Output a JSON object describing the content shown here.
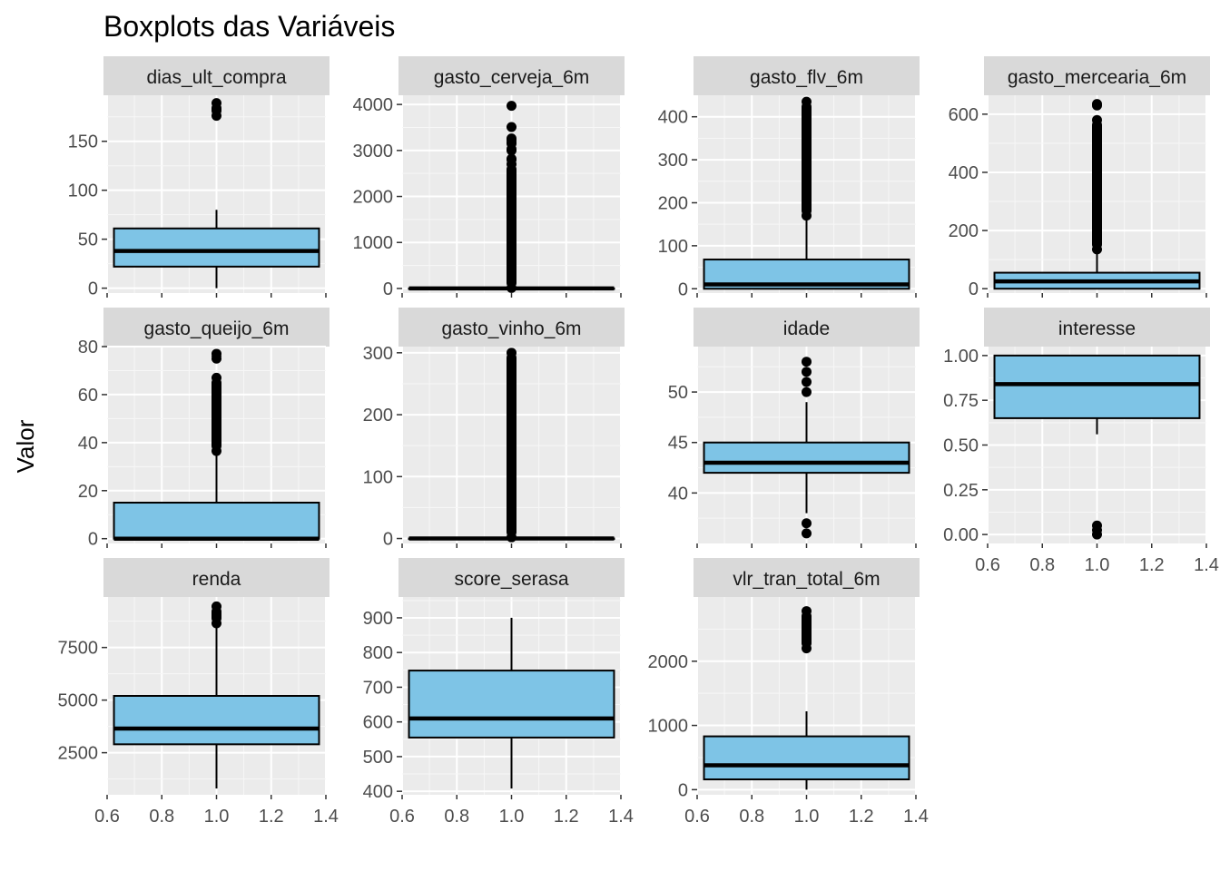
{
  "chart_data": {
    "type": "boxplot-facets",
    "title": "Boxplots das Variáveis",
    "xlabel": "",
    "ylabel": "Valor",
    "x_range": [
      0.6,
      1.4
    ],
    "x_ticks": [
      "0.6",
      "0.8",
      "1.0",
      "1.2",
      "1.4"
    ],
    "box_color": "#7EC4E6",
    "panel_background": "#EBEBEB",
    "strip_background": "#D9D9D9",
    "grid": true,
    "panels": [
      {
        "name": "dias_ult_compra",
        "ylim": [
          -5,
          197
        ],
        "ticks": [
          "0",
          "50",
          "100",
          "150"
        ],
        "whisker_low": 0,
        "q1": 22,
        "median": 38,
        "q3": 61,
        "whisker_high": 80,
        "outliers": [
          {
            "from": 176,
            "to": 189
          }
        ]
      },
      {
        "name": "gasto_cerveja_6m",
        "ylim": [
          -100,
          4200
        ],
        "ticks": [
          "0",
          "1000",
          "2000",
          "3000",
          "4000"
        ],
        "whisker_low": 0,
        "q1": 0,
        "median": 0,
        "q3": 0,
        "whisker_high": 0,
        "outliers": [
          {
            "from": 10,
            "to": 2700
          },
          {
            "from": 2800,
            "to": 2820
          },
          {
            "from": 3000,
            "to": 3030
          },
          {
            "from": 3150,
            "to": 3180
          },
          {
            "from": 3230,
            "to": 3260
          },
          {
            "from": 3500,
            "to": 3510
          },
          {
            "from": 3960,
            "to": 3970
          }
        ]
      },
      {
        "name": "gasto_flv_6m",
        "ylim": [
          -10,
          450
        ],
        "ticks": [
          "0",
          "100",
          "200",
          "300",
          "400"
        ],
        "whisker_low": 0,
        "q1": 0,
        "median": 10,
        "q3": 68,
        "whisker_high": 165,
        "outliers": [
          {
            "from": 170,
            "to": 435
          }
        ]
      },
      {
        "name": "gasto_mercearia_6m",
        "ylim": [
          -15,
          665
        ],
        "ticks": [
          "0",
          "200",
          "400",
          "600"
        ],
        "whisker_low": 0,
        "q1": 0,
        "median": 25,
        "q3": 55,
        "whisker_high": 130,
        "outliers": [
          {
            "from": 135,
            "to": 580
          },
          {
            "from": 630,
            "to": 635
          }
        ]
      },
      {
        "name": "gasto_queijo_6m",
        "ylim": [
          -2,
          80
        ],
        "ticks": [
          "0",
          "20",
          "40",
          "60",
          "80"
        ],
        "whisker_low": 0,
        "q1": 0,
        "median": 0,
        "q3": 15,
        "whisker_high": 36,
        "outliers": [
          {
            "from": 36.5,
            "to": 67
          },
          {
            "from": 75,
            "to": 77
          }
        ]
      },
      {
        "name": "gasto_vinho_6m",
        "ylim": [
          -8,
          310
        ],
        "ticks": [
          "0",
          "100",
          "200",
          "300"
        ],
        "whisker_low": 0,
        "q1": 0,
        "median": 0,
        "q3": 0,
        "whisker_high": 0,
        "outliers": [
          {
            "from": 2,
            "to": 300
          }
        ]
      },
      {
        "name": "idade",
        "ylim": [
          35,
          54.5
        ],
        "ticks": [
          "40",
          "45",
          "50"
        ],
        "whisker_low": 38,
        "q1": 42,
        "median": 43,
        "q3": 45,
        "whisker_high": 49,
        "outliers": [
          {
            "from": 36,
            "to": 36
          },
          {
            "from": 37,
            "to": 37
          },
          {
            "from": 50,
            "to": 50
          },
          {
            "from": 51,
            "to": 51
          },
          {
            "from": 52,
            "to": 52
          },
          {
            "from": 53,
            "to": 53
          }
        ]
      },
      {
        "name": "interesse",
        "ylim": [
          -0.05,
          1.05
        ],
        "ticks": [
          "0.00",
          "0.25",
          "0.50",
          "0.75",
          "1.00"
        ],
        "whisker_low": 0.56,
        "q1": 0.65,
        "median": 0.84,
        "q3": 1.0,
        "whisker_high": 1.0,
        "outliers": [
          {
            "from": 0.0,
            "to": 0.05
          }
        ]
      },
      {
        "name": "renda",
        "ylim": [
          500,
          9900
        ],
        "ticks": [
          "2500",
          "5000",
          "7500"
        ],
        "whisker_low": 800,
        "q1": 2900,
        "median": 3650,
        "q3": 5200,
        "whisker_high": 8600,
        "outliers": [
          {
            "from": 8650,
            "to": 9450
          }
        ]
      },
      {
        "name": "score_serasa",
        "ylim": [
          390,
          960
        ],
        "ticks": [
          "400",
          "500",
          "600",
          "700",
          "800",
          "900"
        ],
        "whisker_low": 408,
        "q1": 555,
        "median": 610,
        "q3": 748,
        "whisker_high": 900,
        "outliers": []
      },
      {
        "name": "vlr_tran_total_6m",
        "ylim": [
          -80,
          3000
        ],
        "ticks": [
          "0",
          "1000",
          "2000"
        ],
        "whisker_low": 0,
        "q1": 160,
        "median": 380,
        "q3": 830,
        "whisker_high": 1220,
        "outliers": [
          {
            "from": 2200,
            "to": 2780
          }
        ]
      }
    ]
  }
}
